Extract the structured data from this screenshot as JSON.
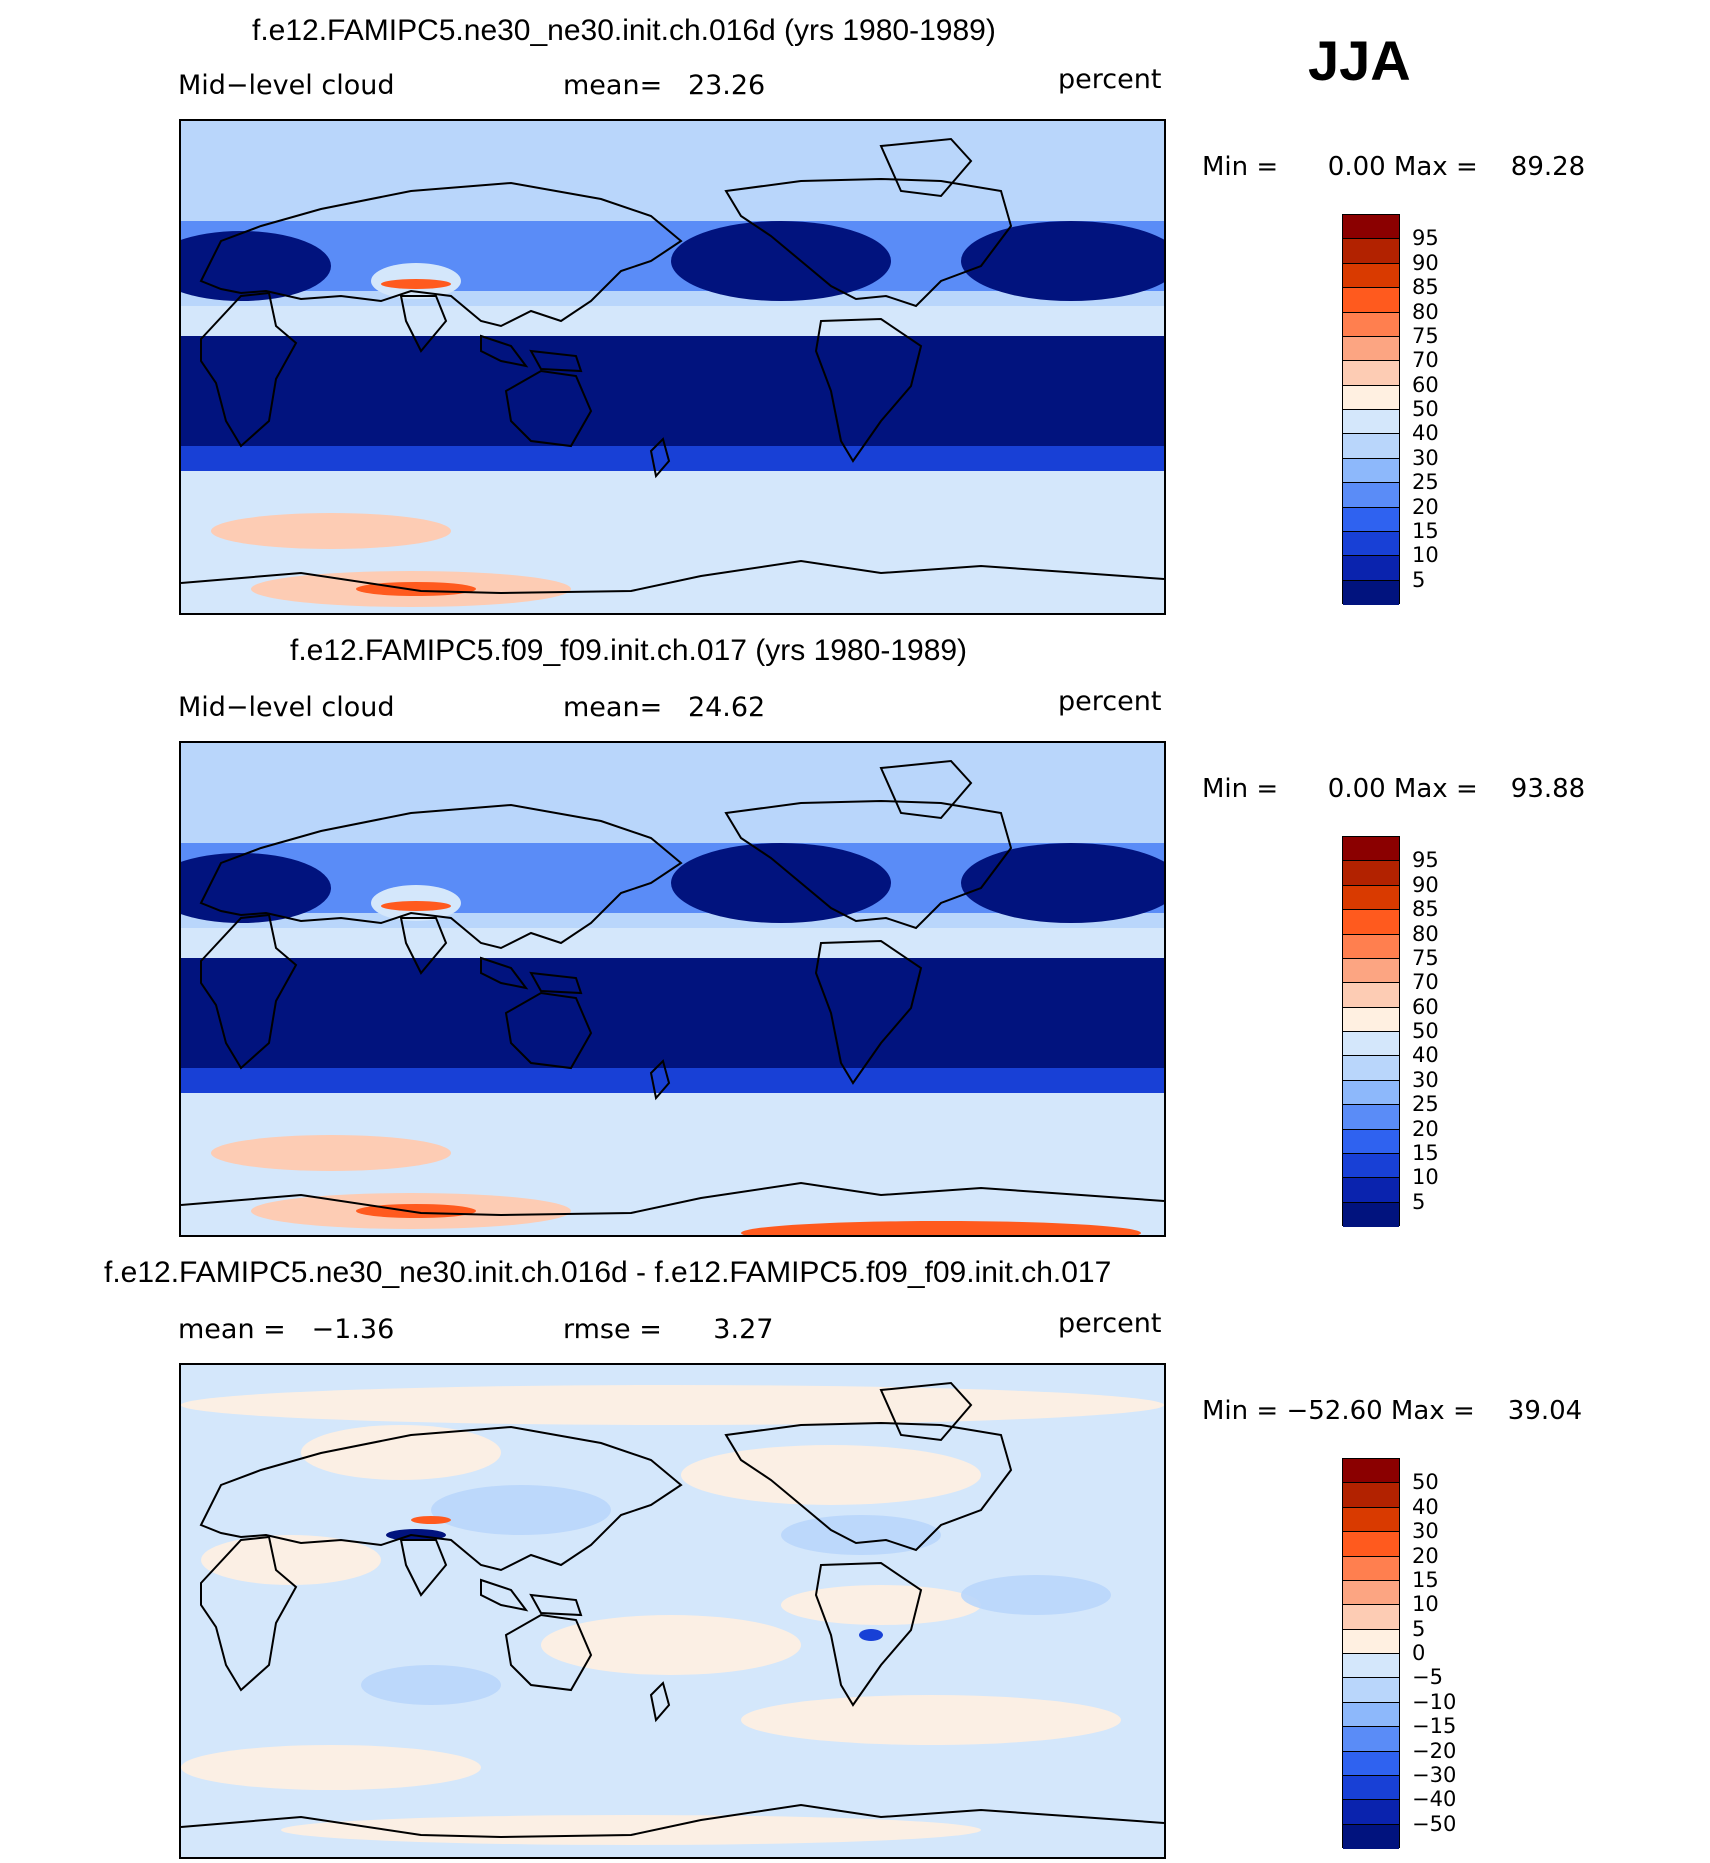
{
  "season": "JJA",
  "panels": [
    {
      "title": "f.e12.FAMIPC5.ne30_ne30.init.ch.016d (yrs 1980-1989)",
      "left": "Mid−level cloud",
      "center": "mean=   23.26",
      "units": "percent",
      "minmax": "Min =      0.00 Max =    89.28",
      "kind": "abs"
    },
    {
      "title": "f.e12.FAMIPC5.f09_f09.init.ch.017 (yrs 1980-1989)",
      "left": "Mid−level cloud",
      "center": "mean=   24.62",
      "units": "percent",
      "minmax": "Min =      0.00 Max =    93.88",
      "kind": "abs"
    },
    {
      "title": "f.e12.FAMIPC5.ne30_ne30.init.ch.016d - f.e12.FAMIPC5.f09_f09.init.ch.017",
      "left": "mean =   −1.36",
      "center": "rmse =      3.27",
      "units": "percent",
      "minmax": "Min = −52.60 Max =    39.04",
      "kind": "diff"
    }
  ],
  "chart_data": [
    {
      "type": "heatmap",
      "title": "f.e12.FAMIPC5.ne30_ne30.init.ch.016d (yrs 1980-1989)",
      "variable": "Mid-level cloud",
      "units": "percent",
      "mean": 23.26,
      "min": 0.0,
      "max": 89.28,
      "levels": [
        5,
        10,
        15,
        20,
        25,
        30,
        40,
        50,
        60,
        70,
        75,
        80,
        85,
        90,
        95
      ]
    },
    {
      "type": "heatmap",
      "title": "f.e12.FAMIPC5.f09_f09.init.ch.017 (yrs 1980-1989)",
      "variable": "Mid-level cloud",
      "units": "percent",
      "mean": 24.62,
      "min": 0.0,
      "max": 93.88,
      "levels": [
        5,
        10,
        15,
        20,
        25,
        30,
        40,
        50,
        60,
        70,
        75,
        80,
        85,
        90,
        95
      ]
    },
    {
      "type": "heatmap",
      "title": "f.e12.FAMIPC5.ne30_ne30.init.ch.016d - f.e12.FAMIPC5.f09_f09.init.ch.017",
      "units": "percent",
      "mean": -1.36,
      "rmse": 3.27,
      "min": -52.6,
      "max": 39.04,
      "levels": [
        -50,
        -40,
        -30,
        -20,
        -15,
        -10,
        -5,
        0,
        5,
        10,
        15,
        20,
        30,
        40,
        50
      ]
    }
  ],
  "colorbars": {
    "abs": {
      "labels": [
        "95",
        "90",
        "85",
        "80",
        "75",
        "70",
        "60",
        "50",
        "40",
        "30",
        "25",
        "20",
        "15",
        "10",
        "5"
      ],
      "colors": [
        "#8b0000",
        "#b22200",
        "#d93a00",
        "#ff5a1e",
        "#ff7f4f",
        "#fca582",
        "#fdccb4",
        "#fff0e1",
        "#d4e7fb",
        "#b9d6fb",
        "#8db8fb",
        "#5a8cf7",
        "#2f62f0",
        "#1840d6",
        "#0a23ae",
        "#01137e"
      ]
    },
    "diff": {
      "labels": [
        "50",
        "40",
        "30",
        "20",
        "15",
        "10",
        "5",
        "0",
        "−5",
        "−10",
        "−15",
        "−20",
        "−30",
        "−40",
        "−50"
      ],
      "colors": [
        "#8b0000",
        "#b22200",
        "#d93a00",
        "#ff5a1e",
        "#ff7f4f",
        "#fca582",
        "#fdccb4",
        "#fff0e1",
        "#d4e7fb",
        "#b9d6fb",
        "#8db8fb",
        "#5a8cf7",
        "#2f62f0",
        "#1840d6",
        "#0a23ae",
        "#01137e"
      ]
    }
  },
  "map_colors": {
    "ocean_abs": "#b9d6fb",
    "band_dark": "#01137e",
    "band_mid": "#1840d6",
    "band_light": "#5a8cf7",
    "polar": "#d4e7fb",
    "peach": "#fdccb4",
    "orange": "#ff5a1e",
    "diff_bg": "#d4e7fb",
    "diff_warm": "#fff0e1",
    "diff_cool": "#b9d6fb",
    "coast": "#000000"
  }
}
